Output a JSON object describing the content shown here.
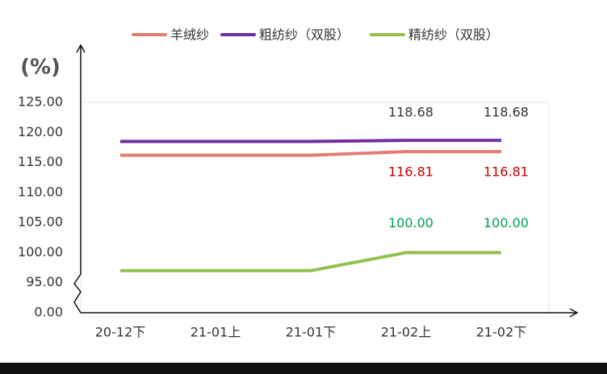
{
  "chart_data": {
    "type": "line",
    "y_label": "(%)",
    "axis_break": true,
    "categories": [
      "20-12下",
      "21-01上",
      "21-01下",
      "21-02上",
      "21-02下"
    ],
    "series": [
      {
        "name": "羊绒纱",
        "color": "#e37d74",
        "label_color": "#c00000",
        "values": [
          116.2,
          116.2,
          116.2,
          116.81,
          116.81
        ],
        "value_labels": [
          null,
          null,
          null,
          "116.81",
          "116.81"
        ]
      },
      {
        "name": "粗纺纱（双股）",
        "color": "#7030a0",
        "label_color": "#333333",
        "values": [
          118.5,
          118.5,
          118.5,
          118.68,
          118.68
        ],
        "value_labels": [
          null,
          null,
          null,
          "118.68",
          "118.68"
        ]
      },
      {
        "name": "精纺纱（双股）",
        "color": "#92c050",
        "label_color": "#00a050",
        "values": [
          97,
          97,
          97,
          100,
          100
        ],
        "value_labels": [
          null,
          null,
          null,
          "100.00",
          "100.00"
        ]
      }
    ],
    "ylim": [
      0,
      125
    ],
    "yticks": [
      {
        "value": 0,
        "label": "0.00"
      },
      {
        "value": 95,
        "label": "95.00"
      },
      {
        "value": 100,
        "label": "100.00"
      },
      {
        "value": 105,
        "label": "105.00"
      },
      {
        "value": 110,
        "label": "110.00"
      },
      {
        "value": 115,
        "label": "115.00"
      },
      {
        "value": 120,
        "label": "120.00"
      },
      {
        "value": 125,
        "label": "125.00"
      }
    ]
  }
}
